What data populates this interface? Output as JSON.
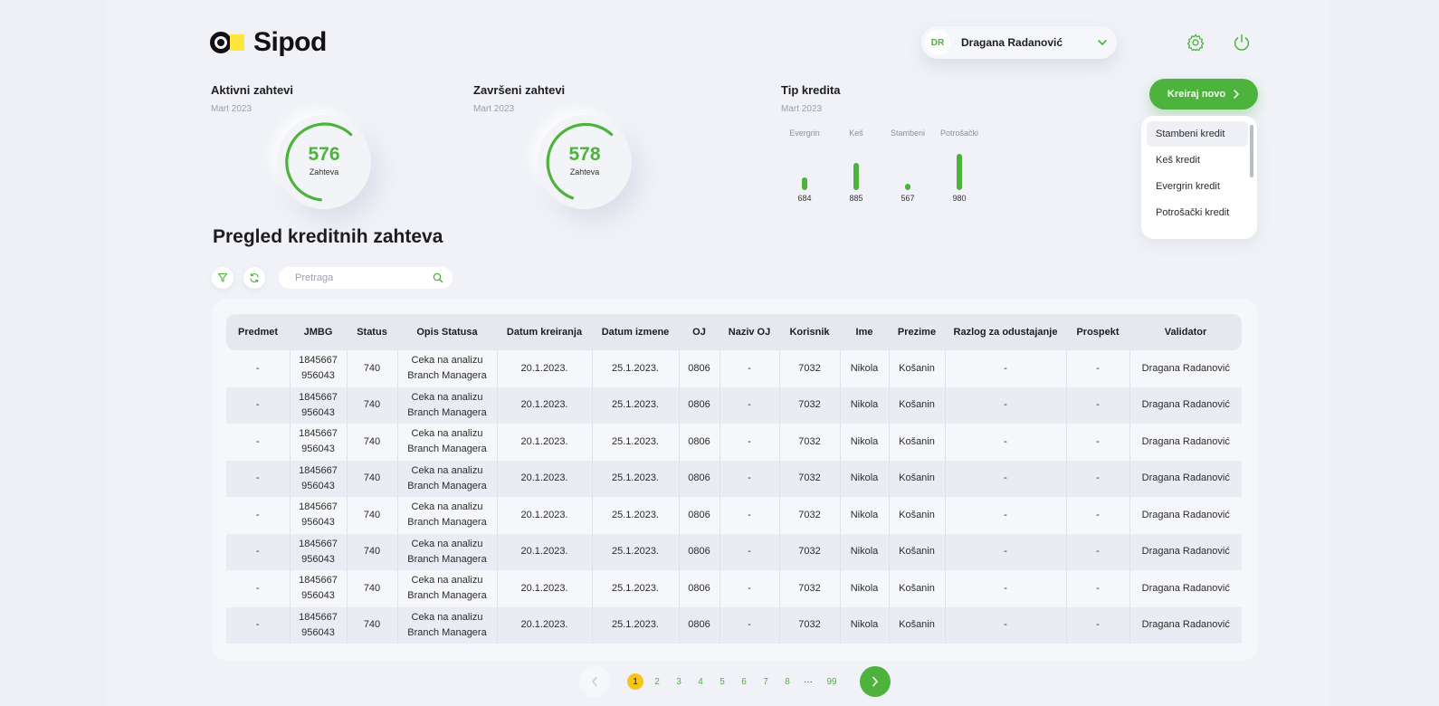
{
  "header": {
    "logo_text": "Sipod",
    "user": {
      "initials": "DR",
      "name": "Dragana Radanović"
    },
    "icons": [
      "gear-icon",
      "power-icon"
    ]
  },
  "stats": {
    "active": {
      "title": "Aktivni zahtevi",
      "period": "Mart 2023",
      "value": "576",
      "unit": "Zahteva"
    },
    "completed": {
      "title": "Završeni zahtevi",
      "period": "Mart 2023",
      "value": "578",
      "unit": "Zahteva"
    },
    "credit_type": {
      "title": "Tip kredita",
      "period": "Mart 2023",
      "chart_data": {
        "type": "bar",
        "categories": [
          "Evergrin",
          "Keš",
          "Stambeni",
          "Potrošački"
        ],
        "values": [
          684,
          885,
          567,
          980
        ],
        "title": "Tip kredita",
        "xlabel": "",
        "ylabel": ""
      }
    }
  },
  "create": {
    "button_label": "Kreiraj novo",
    "options": [
      "Stambeni kredit",
      "Keš kredit",
      "Evergrin kredit",
      "Potrošački kredit"
    ],
    "selected": "Stambeni kredit"
  },
  "main": {
    "title": "Pregled kreditnih zahteva",
    "search_placeholder": "Pretraga"
  },
  "table": {
    "columns": [
      "Predmet",
      "JMBG",
      "Status",
      "Opis Statusa",
      "Datum kreiranja",
      "Datum izmene",
      "OJ",
      "Naziv OJ",
      "Korisnik",
      "Ime",
      "Prezime",
      "Razlog za odustajanje",
      "Prospekt",
      "Validator"
    ],
    "rows": [
      [
        "-",
        "1845667 956043",
        "740",
        "Ceka na analizu Branch Managera",
        "20.1.2023.",
        "25.1.2023.",
        "0806",
        "-",
        "7032",
        "Nikola",
        "Košanin",
        "-",
        "-",
        "Dragana Radanović"
      ],
      [
        "-",
        "1845667 956043",
        "740",
        "Ceka na analizu Branch Managera",
        "20.1.2023.",
        "25.1.2023.",
        "0806",
        "-",
        "7032",
        "Nikola",
        "Košanin",
        "-",
        "-",
        "Dragana Radanović"
      ],
      [
        "-",
        "1845667 956043",
        "740",
        "Ceka na analizu Branch Managera",
        "20.1.2023.",
        "25.1.2023.",
        "0806",
        "-",
        "7032",
        "Nikola",
        "Košanin",
        "-",
        "-",
        "Dragana Radanović"
      ],
      [
        "-",
        "1845667 956043",
        "740",
        "Ceka na analizu Branch Managera",
        "20.1.2023.",
        "25.1.2023.",
        "0806",
        "-",
        "7032",
        "Nikola",
        "Košanin",
        "-",
        "-",
        "Dragana Radanović"
      ],
      [
        "-",
        "1845667 956043",
        "740",
        "Ceka na analizu Branch Managera",
        "20.1.2023.",
        "25.1.2023.",
        "0806",
        "-",
        "7032",
        "Nikola",
        "Košanin",
        "-",
        "-",
        "Dragana Radanović"
      ],
      [
        "-",
        "1845667 956043",
        "740",
        "Ceka na analizu Branch Managera",
        "20.1.2023.",
        "25.1.2023.",
        "0806",
        "-",
        "7032",
        "Nikola",
        "Košanin",
        "-",
        "-",
        "Dragana Radanović"
      ],
      [
        "-",
        "1845667 956043",
        "740",
        "Ceka na analizu Branch Managera",
        "20.1.2023.",
        "25.1.2023.",
        "0806",
        "-",
        "7032",
        "Nikola",
        "Košanin",
        "-",
        "-",
        "Dragana Radanović"
      ],
      [
        "-",
        "1845667 956043",
        "740",
        "Ceka na analizu Branch Managera",
        "20.1.2023.",
        "25.1.2023.",
        "0806",
        "-",
        "7032",
        "Nikola",
        "Košanin",
        "-",
        "-",
        "Dragana Radanović"
      ]
    ]
  },
  "pagination": {
    "pages": [
      "1",
      "2",
      "3",
      "4",
      "5",
      "6",
      "7",
      "8"
    ],
    "ellipsis": "···",
    "last": "99",
    "current": "1"
  },
  "colors": {
    "accent": "#4db33d",
    "highlight": "#f5c518",
    "logo_yellow": "#ffe63b"
  }
}
